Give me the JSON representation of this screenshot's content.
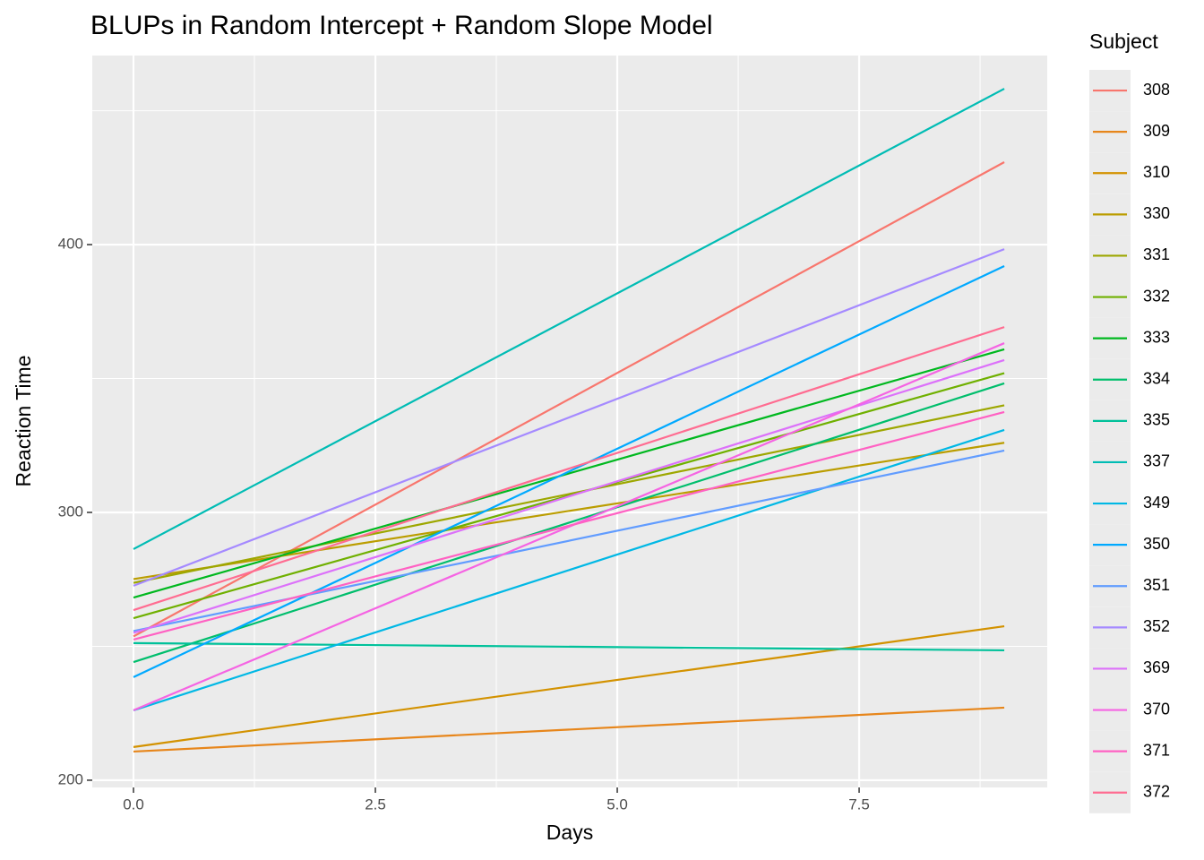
{
  "chart_data": {
    "type": "line",
    "title": "BLUPs in Random Intercept + Random Slope Model",
    "x_label": "Days",
    "y_label": "Reaction Time",
    "legend_title": "Subject",
    "legend_position": "right",
    "x": [
      0,
      9
    ],
    "xlim": [
      -0.426,
      9.444
    ],
    "xticks": [
      {
        "value": 0,
        "label": "0.0"
      },
      2.5,
      {
        "value": 5,
        "label": "5.0"
      },
      7.5
    ],
    "x_minor_ticks": [
      1.25,
      3.75,
      6.25,
      8.75
    ],
    "ylim": [
      197.3,
      470.6
    ],
    "yticks": [
      200,
      300,
      400
    ],
    "y_minor_ticks": [
      250,
      350,
      450
    ],
    "grid": true,
    "series": [
      {
        "name": "308",
        "color": "#F8766D",
        "values": [
          253.7,
          430.8
        ]
      },
      {
        "name": "309",
        "color": "#E7861B",
        "values": [
          210.7,
          227.1
        ]
      },
      {
        "name": "310",
        "color": "#D39200",
        "values": [
          212.4,
          257.5
        ]
      },
      {
        "name": "330",
        "color": "#BB9D00",
        "values": [
          275.1,
          326.0
        ]
      },
      {
        "name": "331",
        "color": "#9DA700",
        "values": [
          273.7,
          340.0
        ]
      },
      {
        "name": "332",
        "color": "#6FB000",
        "values": [
          260.5,
          352.0
        ]
      },
      {
        "name": "333",
        "color": "#00B81F",
        "values": [
          268.2,
          360.9
        ]
      },
      {
        "name": "334",
        "color": "#00BE6C",
        "values": [
          244.1,
          348.2
        ]
      },
      {
        "name": "335",
        "color": "#00C19A",
        "values": [
          251.2,
          248.5
        ]
      },
      {
        "name": "337",
        "color": "#00BCB4",
        "values": [
          286.3,
          458.2
        ]
      },
      {
        "name": "349",
        "color": "#00B8E5",
        "values": [
          226.1,
          330.8
        ]
      },
      {
        "name": "350",
        "color": "#00A9FF",
        "values": [
          238.5,
          392.0
        ]
      },
      {
        "name": "351",
        "color": "#619CFF",
        "values": [
          255.7,
          323.1
        ]
      },
      {
        "name": "352",
        "color": "#A58AFF",
        "values": [
          272.6,
          398.3
        ]
      },
      {
        "name": "369",
        "color": "#DC71FA",
        "values": [
          255.0,
          356.9
        ]
      },
      {
        "name": "370",
        "color": "#F564E3",
        "values": [
          226.1,
          363.2
        ]
      },
      {
        "name": "371",
        "color": "#FF61C3",
        "values": [
          252.5,
          337.5
        ]
      },
      {
        "name": "372",
        "color": "#FF6C91",
        "values": [
          263.5,
          369.2
        ]
      }
    ]
  }
}
